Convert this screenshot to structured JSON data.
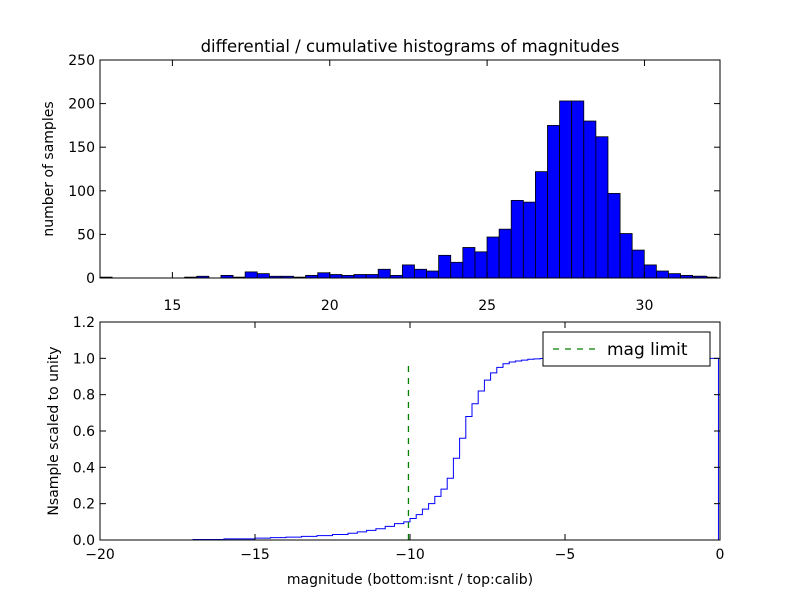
{
  "chart_data": [
    {
      "type": "bar",
      "title": "differential / cumulative histograms of magnitudes",
      "xlabel": "",
      "ylabel": "number of samples",
      "xlim": [
        12.7,
        32.4
      ],
      "ylim": [
        0,
        250
      ],
      "xticks": [
        "15",
        "20",
        "25",
        "30"
      ],
      "yticks": [
        "0",
        "50",
        "100",
        "150",
        "200",
        "250"
      ],
      "bin_width": 0.3843,
      "color": "#0000ff",
      "bins": [
        {
          "x0": 12.7,
          "value": 1
        },
        {
          "x0": 13.0843,
          "value": 0
        },
        {
          "x0": 13.4686,
          "value": 0
        },
        {
          "x0": 13.8529,
          "value": 0
        },
        {
          "x0": 14.2372,
          "value": 0
        },
        {
          "x0": 14.6215,
          "value": 0
        },
        {
          "x0": 15.0058,
          "value": 0
        },
        {
          "x0": 15.3901,
          "value": 1
        },
        {
          "x0": 15.7744,
          "value": 2
        },
        {
          "x0": 16.1587,
          "value": 0
        },
        {
          "x0": 16.543,
          "value": 3
        },
        {
          "x0": 16.9273,
          "value": 1
        },
        {
          "x0": 17.3116,
          "value": 7
        },
        {
          "x0": 17.6959,
          "value": 5
        },
        {
          "x0": 18.0802,
          "value": 2
        },
        {
          "x0": 18.4645,
          "value": 2
        },
        {
          "x0": 18.8488,
          "value": 1
        },
        {
          "x0": 19.2331,
          "value": 3
        },
        {
          "x0": 19.6174,
          "value": 6
        },
        {
          "x0": 20.0017,
          "value": 4
        },
        {
          "x0": 20.386,
          "value": 3
        },
        {
          "x0": 20.7703,
          "value": 4
        },
        {
          "x0": 21.1546,
          "value": 4
        },
        {
          "x0": 21.5389,
          "value": 10
        },
        {
          "x0": 21.9232,
          "value": 3
        },
        {
          "x0": 22.3075,
          "value": 15
        },
        {
          "x0": 22.6918,
          "value": 10
        },
        {
          "x0": 23.0761,
          "value": 8
        },
        {
          "x0": 23.4604,
          "value": 26
        },
        {
          "x0": 23.8447,
          "value": 18
        },
        {
          "x0": 24.229,
          "value": 35
        },
        {
          "x0": 24.6133,
          "value": 30
        },
        {
          "x0": 24.9976,
          "value": 47
        },
        {
          "x0": 25.3819,
          "value": 56
        },
        {
          "x0": 25.7662,
          "value": 89
        },
        {
          "x0": 26.1505,
          "value": 87
        },
        {
          "x0": 26.5348,
          "value": 122
        },
        {
          "x0": 26.9191,
          "value": 175
        },
        {
          "x0": 27.3034,
          "value": 203
        },
        {
          "x0": 27.6877,
          "value": 203
        },
        {
          "x0": 28.072,
          "value": 180
        },
        {
          "x0": 28.4563,
          "value": 162
        },
        {
          "x0": 28.8406,
          "value": 97
        },
        {
          "x0": 29.2249,
          "value": 51
        },
        {
          "x0": 29.6092,
          "value": 32
        },
        {
          "x0": 29.9935,
          "value": 15
        },
        {
          "x0": 30.3778,
          "value": 8
        },
        {
          "x0": 30.7621,
          "value": 5
        },
        {
          "x0": 31.1464,
          "value": 3
        },
        {
          "x0": 31.5307,
          "value": 2
        },
        {
          "x0": 31.915,
          "value": 1
        },
        {
          "x0": 32.2993,
          "value": 0
        },
        {
          "x0": 31.6,
          "value": 2
        }
      ]
    },
    {
      "type": "line",
      "step": true,
      "xlabel": "magnitude (bottom:isnt / top:calib)",
      "ylabel": "Nsample scaled to unity",
      "xlim": [
        -20,
        0
      ],
      "ylim": [
        0,
        1.2
      ],
      "xticks": [
        "−20",
        "−15",
        "−10",
        "−5",
        "0"
      ],
      "yticks": [
        "0.0",
        "0.2",
        "0.4",
        "0.6",
        "0.8",
        "1.0",
        "1.2"
      ],
      "series": [
        {
          "name": "",
          "color": "#0000ff",
          "x": [
            -20,
            -17,
            -16,
            -15,
            -14.5,
            -14,
            -13.5,
            -13,
            -12.5,
            -12,
            -11.7,
            -11.4,
            -11.1,
            -10.8,
            -10.5,
            -10.2,
            -10.0,
            -9.8,
            -9.6,
            -9.4,
            -9.2,
            -9.0,
            -8.8,
            -8.6,
            -8.4,
            -8.2,
            -8.0,
            -7.8,
            -7.6,
            -7.4,
            -7.2,
            -7.0,
            -6.8,
            -6.6,
            -6.4,
            -6.2,
            -6.0,
            -5.8,
            -5.6,
            -0.05,
            -0.05,
            0
          ],
          "y": [
            0.0,
            0.003,
            0.006,
            0.01,
            0.013,
            0.016,
            0.02,
            0.024,
            0.03,
            0.037,
            0.045,
            0.053,
            0.062,
            0.075,
            0.09,
            0.1,
            0.118,
            0.14,
            0.17,
            0.2,
            0.24,
            0.28,
            0.34,
            0.45,
            0.56,
            0.68,
            0.75,
            0.82,
            0.88,
            0.92,
            0.95,
            0.97,
            0.98,
            0.985,
            0.99,
            0.995,
            0.997,
            0.999,
            1.0,
            1.0,
            0.0,
            0.0
          ]
        },
        {
          "name": "mag limit",
          "color": "#008000",
          "style": "dashed",
          "x": [
            -10.05,
            -10.05
          ],
          "y": [
            0.0,
            0.97
          ]
        }
      ],
      "legend": {
        "entries": [
          "mag limit"
        ],
        "placement": "top-right"
      }
    }
  ]
}
